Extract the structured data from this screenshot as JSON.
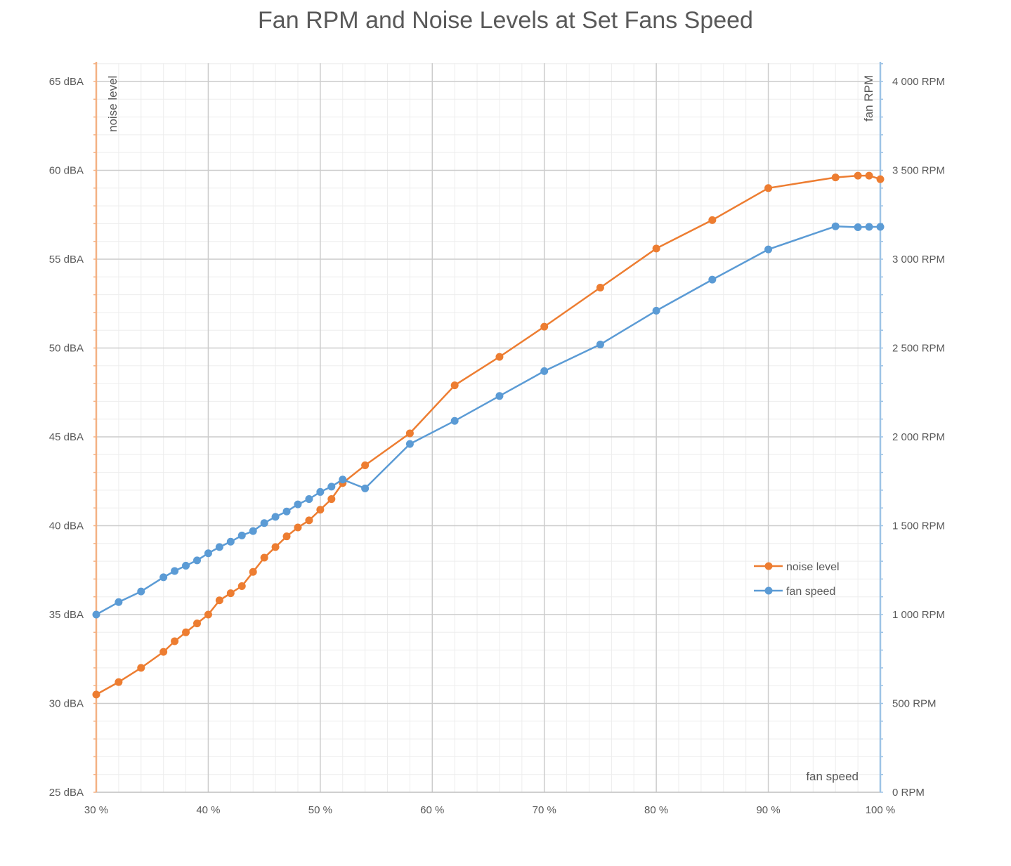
{
  "chart_data": {
    "type": "line",
    "title": "Fan RPM and Noise Levels at Set Fans Speed",
    "xlabel": "fan speed",
    "ylabel_left": "noise level",
    "ylabel_right": "fan RPM",
    "xlim": [
      30,
      100
    ],
    "ylim_left": [
      25,
      65
    ],
    "ylim_right": [
      0,
      4000
    ],
    "x_ticks": [
      "30 %",
      "40 %",
      "50 %",
      "60 %",
      "70 %",
      "80 %",
      "90 %",
      "100 %"
    ],
    "y_ticks_left": [
      "25 dBA",
      "30 dBA",
      "35 dBA",
      "40 dBA",
      "45 dBA",
      "50 dBA",
      "55 dBA",
      "60 dBA",
      "65 dBA"
    ],
    "y_ticks_right": [
      "0 RPM",
      "500 RPM",
      "1 000 RPM",
      "1 500 RPM",
      "2 000 RPM",
      "2 500 RPM",
      "3 000 RPM",
      "3 500 RPM",
      "4 000 RPM"
    ],
    "grid": true,
    "legend_position": "right",
    "series": [
      {
        "name": "noise level",
        "axis": "left",
        "color": "#ED7D31",
        "x": [
          30,
          32,
          34,
          36,
          37,
          38,
          39,
          40,
          41,
          42,
          43,
          44,
          45,
          46,
          47,
          48,
          49,
          50,
          51,
          52,
          54,
          58,
          62,
          66,
          70,
          75,
          80,
          85,
          90,
          96,
          98,
          99,
          100
        ],
        "y": [
          30.5,
          31.2,
          32.0,
          32.9,
          33.5,
          34.0,
          34.5,
          35.0,
          35.8,
          36.2,
          36.6,
          37.4,
          38.2,
          38.8,
          39.4,
          39.9,
          40.3,
          40.9,
          41.5,
          42.4,
          43.4,
          45.2,
          47.9,
          49.5,
          51.2,
          53.4,
          55.6,
          57.2,
          59.0,
          59.6,
          59.7,
          59.7,
          59.5
        ]
      },
      {
        "name": "fan speed",
        "axis": "right",
        "color": "#5B9BD5",
        "x": [
          30,
          32,
          34,
          36,
          37,
          38,
          39,
          40,
          41,
          42,
          43,
          44,
          45,
          46,
          47,
          48,
          49,
          50,
          51,
          52,
          54,
          58,
          62,
          66,
          70,
          75,
          80,
          85,
          90,
          96,
          98,
          99,
          100
        ],
        "y": [
          1000,
          1070,
          1130,
          1210,
          1245,
          1275,
          1305,
          1345,
          1380,
          1410,
          1445,
          1470,
          1515,
          1550,
          1580,
          1620,
          1650,
          1690,
          1720,
          1760,
          1710,
          1960,
          2090,
          2230,
          2370,
          2520,
          2710,
          2885,
          3055,
          3185,
          3180,
          3182,
          3182
        ]
      }
    ]
  }
}
